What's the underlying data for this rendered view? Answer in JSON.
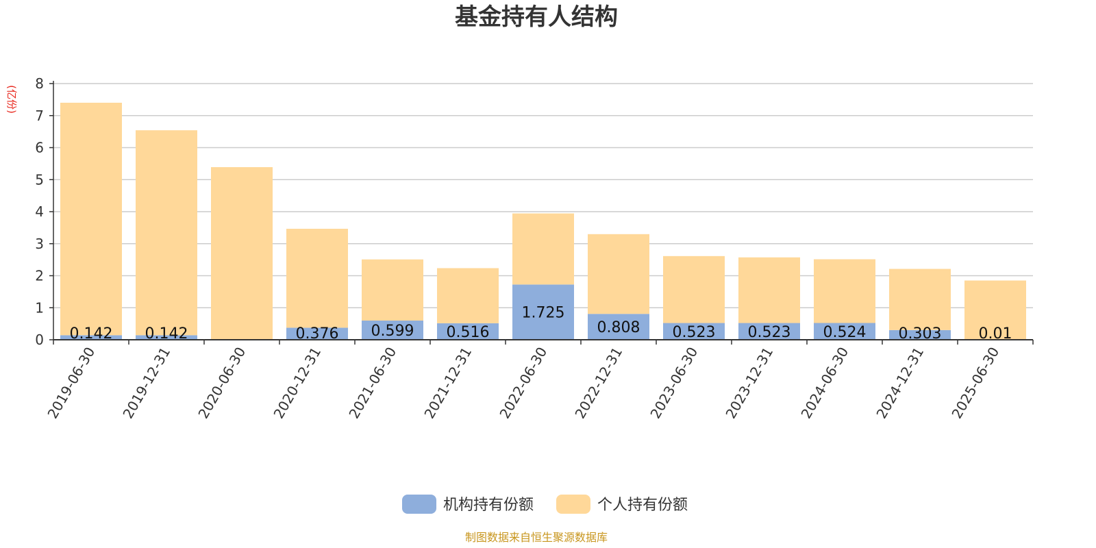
{
  "chart_data": {
    "type": "bar",
    "stacked": true,
    "title": "基金持有人结构",
    "ylabel": "(亿份)",
    "ylim": [
      0,
      8
    ],
    "yticks": [
      "0",
      "1",
      "2",
      "3",
      "4",
      "5",
      "6",
      "7",
      "8"
    ],
    "grid": true,
    "legend_position": "bottom-center",
    "categories": [
      "2019-06-30",
      "2019-12-31",
      "2020-06-30",
      "2020-12-31",
      "2021-06-30",
      "2021-12-31",
      "2022-06-30",
      "2022-12-31",
      "2023-06-30",
      "2023-12-31",
      "2024-06-30",
      "2024-12-31",
      "2025-06-30"
    ],
    "series": [
      {
        "name": "机构持有份额",
        "color": "#8eaedc",
        "values": [
          0.142,
          0.142,
          0,
          0.376,
          0.599,
          0.516,
          1.725,
          0.808,
          0.523,
          0.523,
          0.524,
          0.303,
          0.01
        ],
        "labels": [
          "0.142",
          "0.142",
          "",
          "0.376",
          "0.599",
          "0.516",
          "1.725",
          "0.808",
          "0.523",
          "0.523",
          "0.524",
          "0.303",
          "0.01"
        ]
      },
      {
        "name": "个人持有份额",
        "color": "#ffd899",
        "values": [
          7.26,
          6.4,
          5.39,
          3.09,
          1.91,
          1.72,
          2.22,
          2.49,
          2.09,
          2.05,
          1.99,
          1.91,
          1.84
        ]
      }
    ],
    "source": "制图数据来自恒生聚源数据库"
  },
  "colors": {
    "unit_label": "#e8281e",
    "source_text": "#c8961e",
    "grid": "#cccccc",
    "axis": "#333333"
  }
}
